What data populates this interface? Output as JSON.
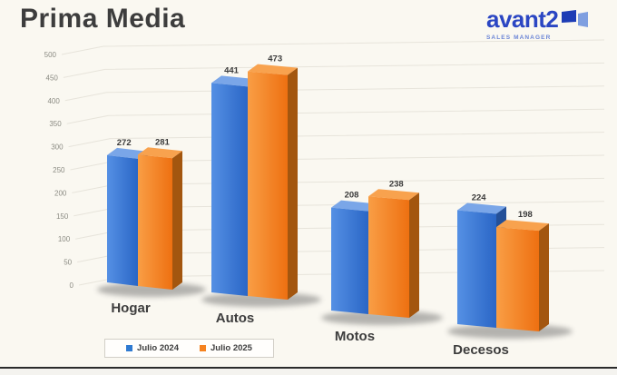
{
  "header": {
    "title": "Prima Media"
  },
  "logo": {
    "brand": "avant2",
    "subtitle": "SALES MANAGER",
    "brand_color": "#2b46c3",
    "icon": "two-panels-icon"
  },
  "chart_data": {
    "type": "bar",
    "style": "3d-clustered-column",
    "categories": [
      "Hogar",
      "Autos",
      "Motos",
      "Decesos"
    ],
    "series": [
      {
        "name": "Julio 2024",
        "color": "#2f7ad1",
        "values": [
          272,
          441,
          208,
          224
        ]
      },
      {
        "name": "Julio 2025",
        "color": "#f5821f",
        "values": [
          281,
          473,
          238,
          198
        ]
      }
    ],
    "ylim": [
      0,
      500
    ],
    "ytick_step": 50,
    "grid": true,
    "value_labels": true,
    "legend_position": "bottom-left"
  }
}
